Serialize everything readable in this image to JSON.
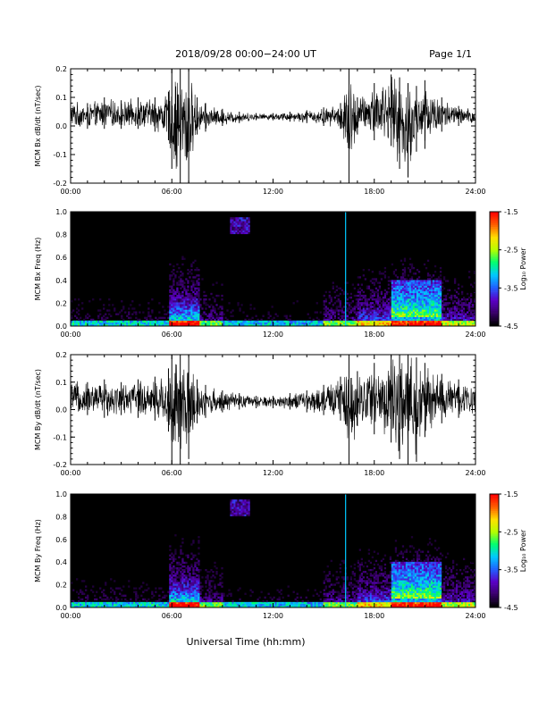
{
  "header": {
    "title": "2018/09/28  00:00−24:00 UT",
    "page": "Page 1/1"
  },
  "xlabel": "Universal Time (hh:mm)",
  "colorbar": {
    "label": "Log₁₀ Power",
    "ticks": [
      "-1.5",
      "-2.5",
      "-3.5",
      "-4.5"
    ],
    "range": [
      -4.5,
      -1.5
    ],
    "colors": [
      "#000000",
      "#3a006b",
      "#5a00c8",
      "#2060ff",
      "#00c8ff",
      "#00ff70",
      "#b4ff00",
      "#ffe000",
      "#ff6000",
      "#ff0000"
    ]
  },
  "chart_data": [
    {
      "type": "line",
      "ylabel": "MCM Bx dB/dt (nT/sec)",
      "xlim": [
        0,
        24
      ],
      "ylim": [
        -0.2,
        0.2
      ],
      "x_ticks": [
        "00:00",
        "06:00",
        "12:00",
        "18:00",
        "24:00"
      ],
      "y_ticks": [
        "0.2",
        "0.1",
        "0.0",
        "-0.1",
        "-0.2"
      ],
      "envelope": [
        {
          "hour": 0.0,
          "min": -0.01,
          "max": 0.09
        },
        {
          "hour": 1.0,
          "min": -0.01,
          "max": 0.08
        },
        {
          "hour": 2.0,
          "min": -0.01,
          "max": 0.1
        },
        {
          "hour": 3.0,
          "min": -0.01,
          "max": 0.09
        },
        {
          "hour": 4.0,
          "min": -0.01,
          "max": 0.1
        },
        {
          "hour": 5.0,
          "min": -0.02,
          "max": 0.1
        },
        {
          "hour": 5.8,
          "min": -0.05,
          "max": 0.12
        },
        {
          "hour": 6.0,
          "min": -0.15,
          "max": 0.2
        },
        {
          "hour": 6.5,
          "min": -0.2,
          "max": 0.2
        },
        {
          "hour": 7.0,
          "min": -0.2,
          "max": 0.2
        },
        {
          "hour": 7.5,
          "min": -0.03,
          "max": 0.1
        },
        {
          "hour": 8.0,
          "min": -0.02,
          "max": 0.08
        },
        {
          "hour": 9.0,
          "min": 0.0,
          "max": 0.06
        },
        {
          "hour": 10.0,
          "min": 0.01,
          "max": 0.05
        },
        {
          "hour": 11.0,
          "min": 0.02,
          "max": 0.045
        },
        {
          "hour": 12.0,
          "min": 0.02,
          "max": 0.045
        },
        {
          "hour": 13.0,
          "min": 0.015,
          "max": 0.05
        },
        {
          "hour": 14.0,
          "min": 0.01,
          "max": 0.055
        },
        {
          "hour": 15.0,
          "min": 0.0,
          "max": 0.065
        },
        {
          "hour": 16.0,
          "min": -0.01,
          "max": 0.08
        },
        {
          "hour": 16.5,
          "min": -0.2,
          "max": 0.2
        },
        {
          "hour": 17.0,
          "min": -0.03,
          "max": 0.1
        },
        {
          "hour": 18.0,
          "min": -0.05,
          "max": 0.15
        },
        {
          "hour": 19.0,
          "min": -0.07,
          "max": 0.18
        },
        {
          "hour": 19.5,
          "min": -0.15,
          "max": 0.17
        },
        {
          "hour": 20.0,
          "min": -0.18,
          "max": 0.15
        },
        {
          "hour": 20.5,
          "min": -0.09,
          "max": 0.14
        },
        {
          "hour": 21.0,
          "min": -0.08,
          "max": 0.16
        },
        {
          "hour": 22.0,
          "min": -0.02,
          "max": 0.1
        },
        {
          "hour": 23.0,
          "min": 0.0,
          "max": 0.07
        },
        {
          "hour": 24.0,
          "min": 0.0,
          "max": 0.06
        }
      ]
    },
    {
      "type": "heatmap",
      "ylabel": "MCM Bx Freq (Hz)",
      "xlim": [
        0,
        24
      ],
      "ylim": [
        0,
        1
      ],
      "x_ticks": [
        "00:00",
        "06:00",
        "12:00",
        "18:00",
        "24:00"
      ],
      "y_ticks": [
        "1.0",
        "0.8",
        "0.6",
        "0.4",
        "0.2",
        "0.0"
      ],
      "line_hour": 16.3
    },
    {
      "type": "line",
      "ylabel": "MCM By dB/dt (nT/sec)",
      "xlim": [
        0,
        24
      ],
      "ylim": [
        -0.2,
        0.2
      ],
      "x_ticks": [
        "00:00",
        "06:00",
        "12:00",
        "18:00",
        "24:00"
      ],
      "y_ticks": [
        "0.2",
        "0.1",
        "0.0",
        "-0.1",
        "-0.2"
      ],
      "envelope": [
        {
          "hour": 0.0,
          "min": -0.03,
          "max": 0.11
        },
        {
          "hour": 1.0,
          "min": -0.02,
          "max": 0.1
        },
        {
          "hour": 2.0,
          "min": -0.03,
          "max": 0.11
        },
        {
          "hour": 3.0,
          "min": -0.02,
          "max": 0.1
        },
        {
          "hour": 4.0,
          "min": -0.03,
          "max": 0.11
        },
        {
          "hour": 5.0,
          "min": -0.04,
          "max": 0.12
        },
        {
          "hour": 5.8,
          "min": -0.08,
          "max": 0.15
        },
        {
          "hour": 6.0,
          "min": -0.2,
          "max": 0.2
        },
        {
          "hour": 6.5,
          "min": -0.2,
          "max": 0.2
        },
        {
          "hour": 7.0,
          "min": -0.18,
          "max": 0.2
        },
        {
          "hour": 7.5,
          "min": -0.05,
          "max": 0.11
        },
        {
          "hour": 8.0,
          "min": -0.03,
          "max": 0.09
        },
        {
          "hour": 9.0,
          "min": -0.01,
          "max": 0.07
        },
        {
          "hour": 10.0,
          "min": 0.0,
          "max": 0.06
        },
        {
          "hour": 11.0,
          "min": 0.005,
          "max": 0.05
        },
        {
          "hour": 12.0,
          "min": 0.005,
          "max": 0.05
        },
        {
          "hour": 13.0,
          "min": 0.0,
          "max": 0.06
        },
        {
          "hour": 14.0,
          "min": -0.01,
          "max": 0.07
        },
        {
          "hour": 15.0,
          "min": -0.02,
          "max": 0.09
        },
        {
          "hour": 16.0,
          "min": -0.04,
          "max": 0.12
        },
        {
          "hour": 16.5,
          "min": -0.2,
          "max": 0.2
        },
        {
          "hour": 17.0,
          "min": -0.06,
          "max": 0.14
        },
        {
          "hour": 18.0,
          "min": -0.09,
          "max": 0.17
        },
        {
          "hour": 19.0,
          "min": -0.12,
          "max": 0.2
        },
        {
          "hour": 19.5,
          "min": -0.18,
          "max": 0.2
        },
        {
          "hour": 20.0,
          "min": -0.2,
          "max": 0.2
        },
        {
          "hour": 20.5,
          "min": -0.19,
          "max": 0.19
        },
        {
          "hour": 21.0,
          "min": -0.1,
          "max": 0.17
        },
        {
          "hour": 22.0,
          "min": -0.05,
          "max": 0.13
        },
        {
          "hour": 23.0,
          "min": -0.03,
          "max": 0.11
        },
        {
          "hour": 24.0,
          "min": -0.02,
          "max": 0.1
        }
      ]
    },
    {
      "type": "heatmap",
      "ylabel": "MCM By Freq (Hz)",
      "xlim": [
        0,
        24
      ],
      "ylim": [
        0,
        1
      ],
      "x_ticks": [
        "00:00",
        "06:00",
        "12:00",
        "18:00",
        "24:00"
      ],
      "y_ticks": [
        "1.0",
        "0.8",
        "0.6",
        "0.4",
        "0.2",
        "0.0"
      ],
      "line_hour": 16.3
    }
  ]
}
